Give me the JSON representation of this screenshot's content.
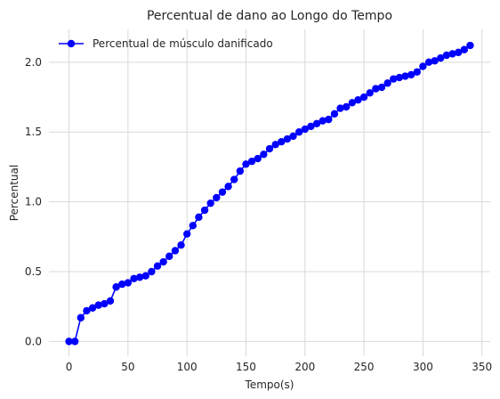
{
  "chart_data": {
    "type": "line",
    "title": "Percentual de dano ao Longo do Tempo",
    "xlabel": "Tempo(s)",
    "ylabel": "Percentual",
    "xlim": [
      -17,
      357
    ],
    "ylim": [
      -0.106,
      2.235
    ],
    "x_ticks": [
      0,
      50,
      100,
      150,
      200,
      250,
      300,
      350
    ],
    "y_ticks": [
      0.0,
      0.5,
      1.0,
      1.5,
      2.0
    ],
    "x_tick_labels": [
      "0",
      "50",
      "100",
      "150",
      "200",
      "250",
      "300",
      "350"
    ],
    "y_tick_labels": [
      "0.0",
      "0.5",
      "1.0",
      "1.5",
      "2.0"
    ],
    "grid": true,
    "legend_position": "top-left",
    "series": [
      {
        "name": "Percentual de músculo danificado",
        "color": "#0000ff",
        "marker": "circle",
        "x": [
          0,
          5,
          10,
          15,
          20,
          25,
          30,
          35,
          40,
          45,
          50,
          55,
          60,
          65,
          70,
          75,
          80,
          85,
          90,
          95,
          100,
          105,
          110,
          115,
          120,
          125,
          130,
          135,
          140,
          145,
          150,
          155,
          160,
          165,
          170,
          175,
          180,
          185,
          190,
          195,
          200,
          205,
          210,
          215,
          220,
          225,
          230,
          235,
          240,
          245,
          250,
          255,
          260,
          265,
          270,
          275,
          280,
          285,
          290,
          295,
          300,
          305,
          310,
          315,
          320,
          325,
          330,
          335,
          340
        ],
        "y": [
          0.0,
          0.0,
          0.17,
          0.22,
          0.24,
          0.26,
          0.27,
          0.29,
          0.39,
          0.41,
          0.42,
          0.45,
          0.46,
          0.47,
          0.5,
          0.54,
          0.57,
          0.61,
          0.65,
          0.69,
          0.77,
          0.83,
          0.89,
          0.94,
          0.99,
          1.03,
          1.07,
          1.11,
          1.16,
          1.22,
          1.27,
          1.29,
          1.31,
          1.34,
          1.38,
          1.41,
          1.43,
          1.45,
          1.47,
          1.5,
          1.52,
          1.54,
          1.56,
          1.58,
          1.59,
          1.63,
          1.67,
          1.68,
          1.71,
          1.73,
          1.75,
          1.78,
          1.81,
          1.82,
          1.85,
          1.88,
          1.89,
          1.9,
          1.91,
          1.93,
          1.97,
          2.0,
          2.01,
          2.03,
          2.05,
          2.06,
          2.07,
          2.09,
          2.12
        ]
      }
    ]
  }
}
